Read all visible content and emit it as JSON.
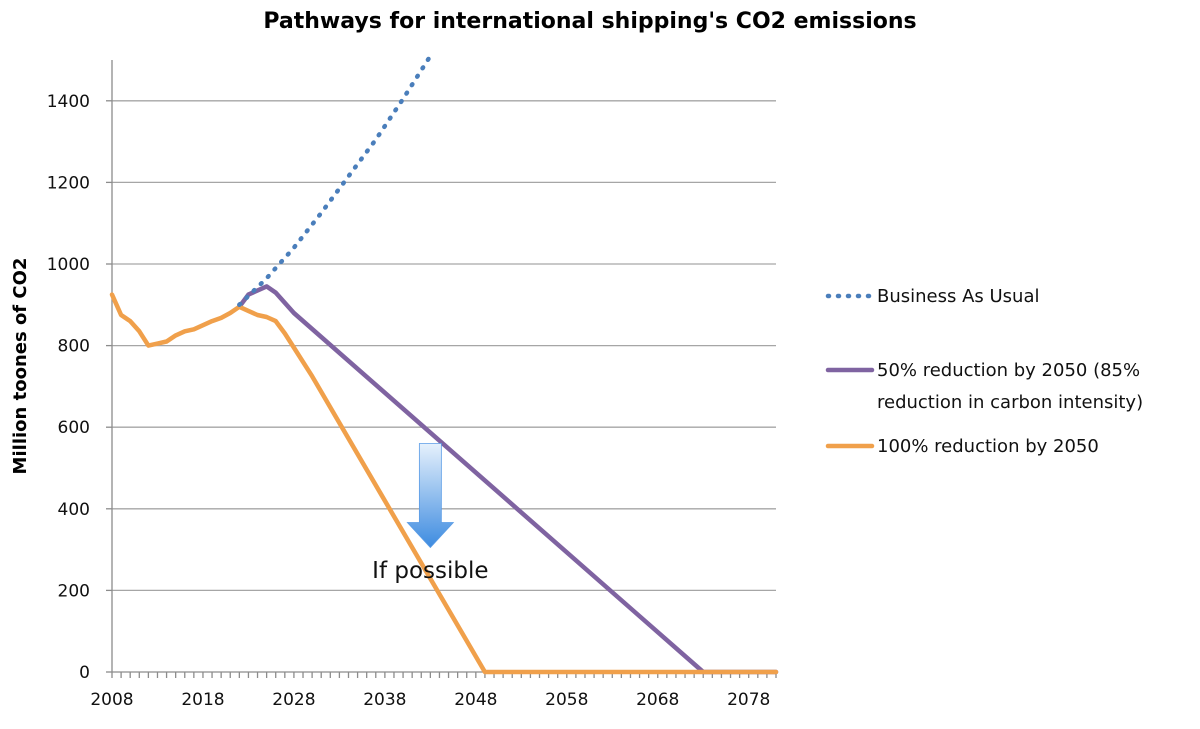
{
  "chart_data": {
    "type": "line",
    "title": "Pathways for international shipping's CO2 emissions",
    "xlabel": "",
    "ylabel": "Million toones of CO2",
    "xlim": [
      2008,
      2081
    ],
    "ylim": [
      0,
      1500
    ],
    "xticks": [
      2008,
      2018,
      2028,
      2038,
      2048,
      2058,
      2068,
      2078
    ],
    "yticks": [
      0,
      200,
      400,
      600,
      800,
      1000,
      1200,
      1400
    ],
    "grid": "horizontal",
    "legend_position": "right",
    "series": [
      {
        "name": "Business As Usual",
        "style": "dotted",
        "color": "#4a7ebb",
        "x": [
          2022,
          2025,
          2028,
          2031,
          2034,
          2037,
          2040,
          2043
        ],
        "y": [
          900,
          965,
          1040,
          1125,
          1215,
          1305,
          1405,
          1510
        ]
      },
      {
        "name": "50% reduction by 2050 (85% reduction in carbon intensity)",
        "name_lines": [
          "50% reduction by 2050 (85%",
          "reduction in carbon intensity)"
        ],
        "style": "solid",
        "color": "#7f63a1",
        "x": [
          2022,
          2023,
          2025,
          2026,
          2028,
          2073,
          2081
        ],
        "y": [
          895,
          925,
          945,
          930,
          880,
          0,
          0
        ]
      },
      {
        "name": "100% reduction by 2050",
        "style": "solid",
        "color": "#f0a04b",
        "x": [
          2008,
          2009,
          2010,
          2011,
          2012,
          2013,
          2014,
          2015,
          2016,
          2017,
          2018,
          2019,
          2020,
          2021,
          2022,
          2023,
          2024,
          2025,
          2026,
          2027,
          2028,
          2030,
          2049,
          2081
        ],
        "y": [
          925,
          875,
          860,
          835,
          800,
          805,
          810,
          825,
          835,
          840,
          850,
          860,
          868,
          880,
          895,
          885,
          875,
          870,
          860,
          830,
          795,
          725,
          0,
          0
        ]
      }
    ],
    "annotations": [
      {
        "text": "If possible",
        "x": 2043,
        "y": 250,
        "arrow_from_y": 560,
        "arrow_to_y": 305
      }
    ]
  },
  "colors": {
    "arrow_top": "#e6f1fc",
    "arrow_bottom": "#3d8be0"
  }
}
